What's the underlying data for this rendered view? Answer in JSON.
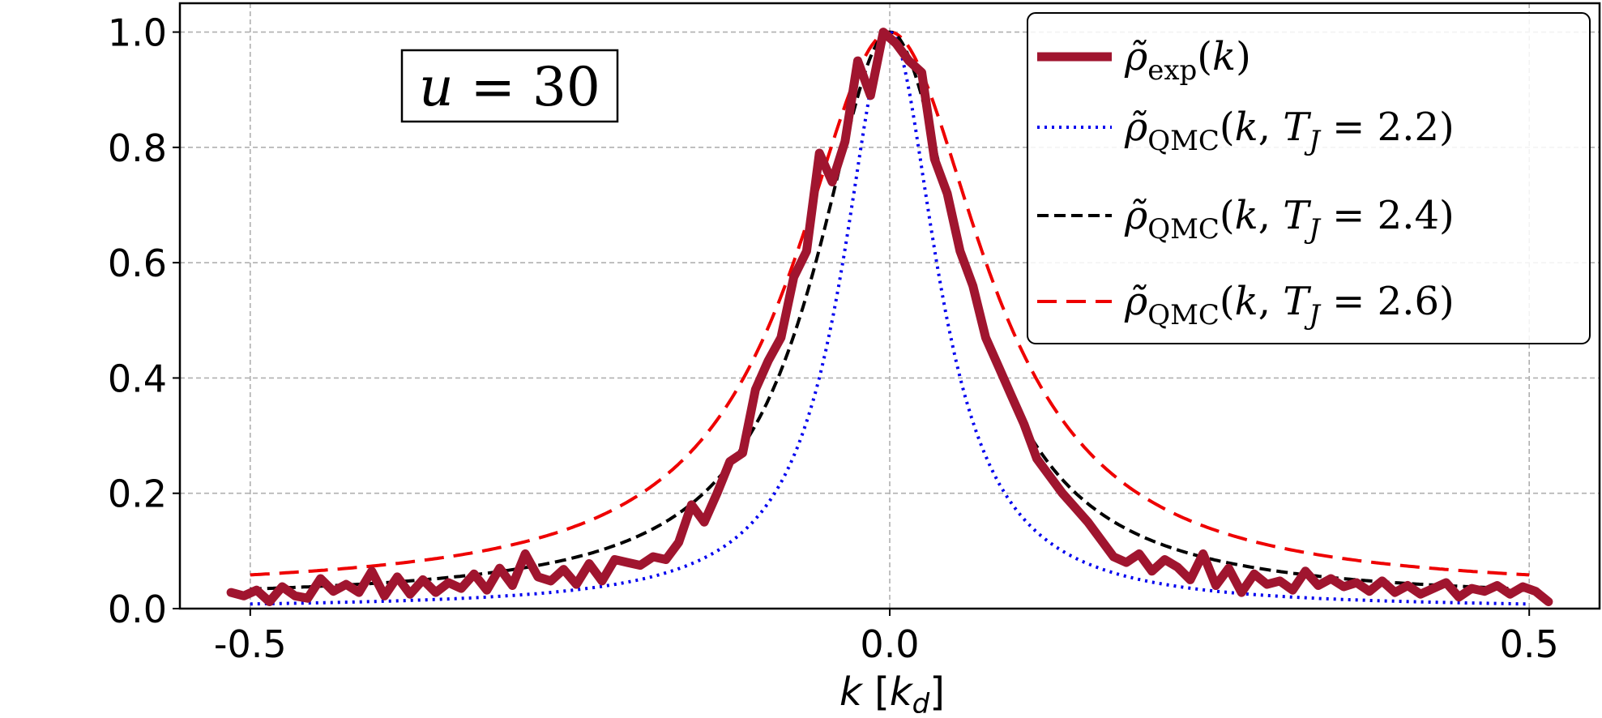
{
  "chart_data": {
    "type": "line",
    "xlabel": "k [k_d]",
    "ylabel": "",
    "xlim": [
      -0.555,
      0.555
    ],
    "ylim": [
      0.0,
      1.05
    ],
    "grid": true,
    "legend_placement": "top-right",
    "x_ticks": [
      {
        "value": -0.5,
        "label": "-0.5"
      },
      {
        "value": 0.0,
        "label": "0.0"
      },
      {
        "value": 0.5,
        "label": "0.5"
      }
    ],
    "y_ticks": [
      {
        "value": 0.0,
        "label": "0.0"
      },
      {
        "value": 0.2,
        "label": "0.2"
      },
      {
        "value": 0.4,
        "label": "0.4"
      },
      {
        "value": 0.6,
        "label": "0.6"
      },
      {
        "value": 0.8,
        "label": "0.8"
      },
      {
        "value": 1.0,
        "label": "1.0"
      }
    ],
    "annotation": "u = 30",
    "series": [
      {
        "name": "ρ̃_exp(k)",
        "color": "#a0152f",
        "style": "solid",
        "x": [
          -0.515,
          -0.505,
          -0.495,
          -0.485,
          -0.475,
          -0.465,
          -0.455,
          -0.445,
          -0.435,
          -0.425,
          -0.415,
          -0.405,
          -0.395,
          -0.385,
          -0.375,
          -0.365,
          -0.355,
          -0.345,
          -0.335,
          -0.325,
          -0.315,
          -0.305,
          -0.295,
          -0.285,
          -0.275,
          -0.265,
          -0.255,
          -0.245,
          -0.235,
          -0.225,
          -0.215,
          -0.205,
          -0.195,
          -0.185,
          -0.175,
          -0.165,
          -0.155,
          -0.145,
          -0.135,
          -0.125,
          -0.115,
          -0.105,
          -0.095,
          -0.085,
          -0.075,
          -0.065,
          -0.055,
          -0.045,
          -0.035,
          -0.025,
          -0.015,
          -0.005,
          0.005,
          0.015,
          0.025,
          0.035,
          0.045,
          0.055,
          0.065,
          0.075,
          0.085,
          0.095,
          0.105,
          0.115,
          0.125,
          0.135,
          0.145,
          0.155,
          0.165,
          0.175,
          0.185,
          0.195,
          0.205,
          0.215,
          0.225,
          0.235,
          0.245,
          0.255,
          0.265,
          0.275,
          0.285,
          0.295,
          0.305,
          0.315,
          0.325,
          0.335,
          0.345,
          0.355,
          0.365,
          0.375,
          0.385,
          0.395,
          0.405,
          0.415,
          0.425,
          0.435,
          0.445,
          0.455,
          0.465,
          0.475,
          0.485,
          0.495,
          0.505,
          0.515
        ],
        "y": [
          0.028,
          0.022,
          0.032,
          0.012,
          0.038,
          0.022,
          0.018,
          0.052,
          0.03,
          0.042,
          0.028,
          0.065,
          0.022,
          0.055,
          0.025,
          0.05,
          0.028,
          0.045,
          0.035,
          0.06,
          0.032,
          0.07,
          0.04,
          0.095,
          0.055,
          0.048,
          0.068,
          0.042,
          0.078,
          0.048,
          0.085,
          0.08,
          0.075,
          0.09,
          0.085,
          0.115,
          0.18,
          0.15,
          0.2,
          0.255,
          0.27,
          0.38,
          0.43,
          0.47,
          0.575,
          0.62,
          0.79,
          0.74,
          0.81,
          0.95,
          0.89,
          1.0,
          0.98,
          0.95,
          0.93,
          0.78,
          0.72,
          0.62,
          0.56,
          0.47,
          0.42,
          0.37,
          0.32,
          0.26,
          0.23,
          0.2,
          0.175,
          0.15,
          0.12,
          0.09,
          0.08,
          0.095,
          0.065,
          0.085,
          0.072,
          0.05,
          0.095,
          0.04,
          0.07,
          0.028,
          0.06,
          0.042,
          0.048,
          0.032,
          0.065,
          0.04,
          0.052,
          0.038,
          0.045,
          0.03,
          0.048,
          0.028,
          0.04,
          0.025,
          0.035,
          0.045,
          0.02,
          0.035,
          0.03,
          0.04,
          0.025,
          0.038,
          0.03,
          0.012
        ]
      },
      {
        "name": "ρ̃_QMC(k, T_J = 2.2)",
        "color": "#0000ee",
        "style": "dotted",
        "lorentz_gamma": 0.045,
        "baseline": 0.0
      },
      {
        "name": "ρ̃_QMC(k, T_J = 2.4)",
        "color": "#000000",
        "style": "dashed",
        "lorentz_gamma": 0.07,
        "baseline": 0.015
      },
      {
        "name": "ρ̃_QMC(k, T_J = 2.6)",
        "color": "#ee0000",
        "style": "longdash",
        "lorentz_gamma": 0.09,
        "baseline": 0.028
      }
    ]
  }
}
